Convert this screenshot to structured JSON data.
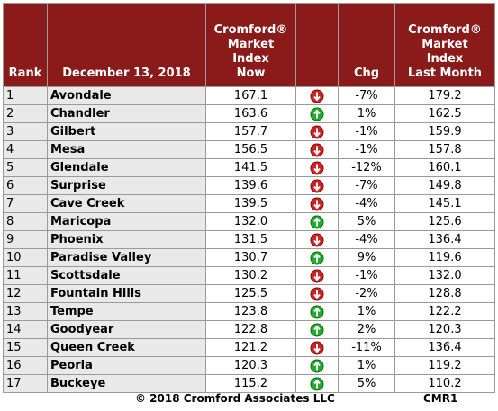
{
  "table": {
    "header": [
      [
        "Rank"
      ],
      [
        "December 13, 2018"
      ],
      [
        "Cromford®",
        "Market",
        "Index",
        "Now"
      ],
      [],
      [
        "Chg"
      ],
      [
        "Cromford®",
        "Market",
        "Index",
        "Last Month"
      ]
    ],
    "rows": [
      [
        "1",
        "Avondale",
        "167.1",
        "-7%",
        "179.2"
      ],
      [
        "2",
        "Chandler",
        "163.6",
        "1%",
        "162.5"
      ],
      [
        "3",
        "Gilbert",
        "157.7",
        "-1%",
        "159.9"
      ],
      [
        "4",
        "Mesa",
        "156.5",
        "-1%",
        "157.8"
      ],
      [
        "5",
        "Glendale",
        "141.5",
        "-12%",
        "160.1"
      ],
      [
        "6",
        "Surprise",
        "139.6",
        "-7%",
        "149.8"
      ],
      [
        "7",
        "Cave Creek",
        "139.5",
        "-4%",
        "145.1"
      ],
      [
        "8",
        "Maricopa",
        "132.0",
        "5%",
        "125.6"
      ],
      [
        "9",
        "Phoenix",
        "131.5",
        "-4%",
        "136.4"
      ],
      [
        "10",
        "Paradise Valley",
        "130.7",
        "9%",
        "119.6"
      ],
      [
        "11",
        "Scottsdale",
        "130.2",
        "-1%",
        "132.0"
      ],
      [
        "12",
        "Fountain Hills",
        "125.5",
        "-2%",
        "128.8"
      ],
      [
        "13",
        "Tempe",
        "123.8",
        "1%",
        "122.2"
      ],
      [
        "14",
        "Goodyear",
        "122.8",
        "2%",
        "120.3"
      ],
      [
        "15",
        "Queen Creek",
        "121.2",
        "-11%",
        "136.4"
      ],
      [
        "16",
        "Peoria",
        "120.3",
        "1%",
        "119.2"
      ],
      [
        "17",
        "Buckeye",
        "115.2",
        "5%",
        "110.2"
      ]
    ]
  },
  "footer": {
    "copyright": "© 2018 Cromford Associates LLC",
    "code": "CMR1"
  }
}
